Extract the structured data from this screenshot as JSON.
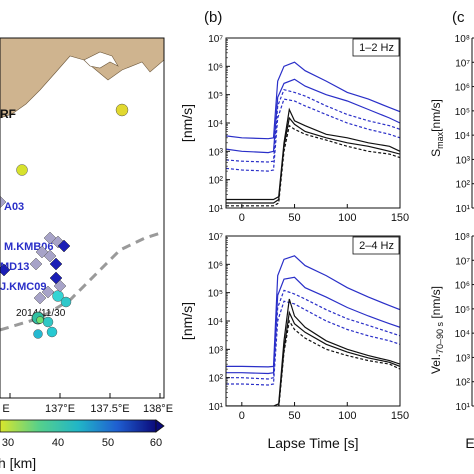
{
  "panel_labels": {
    "b": "(b)",
    "c": "(c"
  },
  "map": {
    "xticks": [
      "E",
      "137°E",
      "137.5°E",
      "138°E"
    ],
    "station_labels": [
      "RF",
      "A03",
      "M.KMB06",
      "MD13",
      "J.KMC09"
    ],
    "event_label": "2014/11/30",
    "colorbar": {
      "ticks": [
        "30",
        "40",
        "50",
        "60"
      ],
      "label": "h [km]"
    }
  },
  "colors": {
    "land": "#cfb48f",
    "sea": "#ffffff",
    "blue": "#2a2fc8",
    "black": "#111111",
    "trench": "#9a9a9a",
    "station": "#a7a3c8",
    "station_blue": "#1b1fb5"
  },
  "panel_c": {
    "ylabel_top": "S_max [nm/s]",
    "ylabel_bottom": "Vel._{70–90 s} [nm/s]",
    "xlabel_fragment": "E"
  },
  "chart_data": [
    {
      "type": "line",
      "inset_label": "1–2 Hz",
      "xlabel": "",
      "ylabel": "[nm/s]",
      "xlim": [
        -15,
        150
      ],
      "ylog": true,
      "ylim_exp": [
        1,
        7
      ],
      "xticks": [
        0,
        50,
        100,
        150
      ],
      "yticks": [
        "10¹",
        "10²",
        "10³",
        "10⁴",
        "10⁵",
        "10⁶",
        "10⁷"
      ],
      "series": [
        {
          "color": "blue",
          "dash": false,
          "x": [
            -15,
            0,
            25,
            30,
            34,
            40,
            50,
            60,
            80,
            100,
            120,
            140,
            150
          ],
          "y": [
            3500,
            3000,
            2800,
            3000,
            300000,
            1000000,
            1400000,
            700000,
            300000,
            120000,
            70000,
            35000,
            25000
          ]
        },
        {
          "color": "blue",
          "dash": false,
          "x": [
            -15,
            0,
            25,
            30,
            34,
            40,
            50,
            60,
            80,
            100,
            120,
            140,
            150
          ],
          "y": [
            1200,
            1000,
            900,
            1000,
            80000,
            250000,
            350000,
            200000,
            100000,
            60000,
            30000,
            15000,
            10000
          ]
        },
        {
          "color": "blue",
          "dash": true,
          "x": [
            -15,
            0,
            25,
            30,
            34,
            40,
            50,
            60,
            80,
            100,
            120,
            140,
            150
          ],
          "y": [
            500,
            450,
            420,
            450,
            40000,
            150000,
            120000,
            90000,
            40000,
            20000,
            12000,
            8000,
            6000
          ]
        },
        {
          "color": "blue",
          "dash": true,
          "x": [
            -15,
            0,
            25,
            30,
            34,
            40,
            50,
            60,
            80,
            100,
            120,
            140,
            150
          ],
          "y": [
            250,
            220,
            200,
            220,
            15000,
            70000,
            60000,
            40000,
            20000,
            10000,
            6000,
            4000,
            3000
          ]
        },
        {
          "color": "black",
          "dash": false,
          "x": [
            -15,
            0,
            25,
            30,
            35,
            40,
            45,
            50,
            60,
            80,
            100,
            120,
            140,
            150
          ],
          "y": [
            20,
            20,
            20,
            20,
            25,
            2000,
            30000,
            12000,
            8000,
            4000,
            3000,
            2000,
            1500,
            1000
          ]
        },
        {
          "color": "black",
          "dash": false,
          "x": [
            -15,
            0,
            25,
            30,
            35,
            40,
            45,
            50,
            60,
            80,
            100,
            120,
            140,
            150
          ],
          "y": [
            15,
            15,
            15,
            15,
            20,
            1500,
            15000,
            9000,
            5000,
            3000,
            2000,
            1500,
            1000,
            800
          ]
        },
        {
          "color": "black",
          "dash": true,
          "x": [
            -15,
            0,
            25,
            30,
            35,
            40,
            45,
            50,
            60,
            80,
            100,
            120,
            140,
            150
          ],
          "y": [
            12,
            12,
            12,
            12,
            15,
            1000,
            8000,
            6000,
            4000,
            2500,
            1500,
            1000,
            800,
            600
          ]
        }
      ]
    },
    {
      "type": "line",
      "inset_label": "2–4 Hz",
      "xlabel": "Lapse Time [s]",
      "ylabel": "[nm/s]",
      "xlim": [
        -15,
        150
      ],
      "ylog": true,
      "ylim_exp": [
        1,
        7
      ],
      "xticks": [
        0,
        50,
        100,
        150
      ],
      "yticks": [
        "10¹",
        "10²",
        "10³",
        "10⁴",
        "10⁵",
        "10⁶",
        "10⁷"
      ],
      "series": [
        {
          "color": "blue",
          "dash": false,
          "x": [
            -15,
            0,
            25,
            30,
            34,
            40,
            50,
            60,
            80,
            100,
            120,
            140,
            150
          ],
          "y": [
            250,
            250,
            240,
            250,
            400000,
            1500000,
            2000000,
            900000,
            400000,
            150000,
            70000,
            35000,
            25000
          ]
        },
        {
          "color": "blue",
          "dash": false,
          "x": [
            -15,
            0,
            25,
            30,
            34,
            40,
            50,
            60,
            80,
            100,
            120,
            140,
            150
          ],
          "y": [
            150,
            150,
            140,
            150,
            80000,
            300000,
            350000,
            150000,
            70000,
            30000,
            15000,
            8000,
            6000
          ]
        },
        {
          "color": "blue",
          "dash": true,
          "x": [
            -15,
            0,
            25,
            30,
            34,
            40,
            50,
            60,
            80,
            100,
            120,
            140,
            150
          ],
          "y": [
            100,
            100,
            90,
            100,
            30000,
            120000,
            90000,
            60000,
            25000,
            12000,
            7000,
            4000,
            3000
          ]
        },
        {
          "color": "blue",
          "dash": true,
          "x": [
            -15,
            0,
            25,
            30,
            34,
            40,
            50,
            60,
            80,
            100,
            120,
            140,
            150
          ],
          "y": [
            60,
            60,
            55,
            60,
            10000,
            50000,
            40000,
            25000,
            10000,
            5000,
            3000,
            2000,
            1500
          ]
        },
        {
          "color": "black",
          "dash": false,
          "x": [
            -15,
            0,
            25,
            30,
            35,
            40,
            45,
            50,
            60,
            80,
            100,
            120,
            140,
            150
          ],
          "y": [
            10,
            10,
            10,
            10,
            12,
            2000,
            60000,
            15000,
            6000,
            2000,
            1000,
            600,
            400,
            300
          ]
        },
        {
          "color": "black",
          "dash": false,
          "x": [
            -15,
            0,
            25,
            30,
            35,
            40,
            45,
            50,
            60,
            80,
            100,
            120,
            140,
            150
          ],
          "y": [
            8,
            8,
            8,
            8,
            10,
            1000,
            20000,
            8000,
            4000,
            1500,
            800,
            500,
            350,
            250
          ]
        },
        {
          "color": "black",
          "dash": true,
          "x": [
            -15,
            0,
            25,
            30,
            35,
            40,
            45,
            50,
            60,
            80,
            100,
            120,
            140,
            150
          ],
          "y": [
            6,
            6,
            6,
            6,
            8,
            800,
            10000,
            5000,
            2500,
            1000,
            600,
            400,
            300,
            200
          ]
        }
      ]
    },
    {
      "type": "scatter",
      "ylabel": "S_max [nm/s]",
      "ylog": true,
      "ylim_exp": [
        1,
        8
      ],
      "yticks": [
        "10¹",
        "10²",
        "10³",
        "10⁴",
        "10⁵",
        "10⁶",
        "10⁷",
        "10⁸"
      ]
    },
    {
      "type": "scatter",
      "ylabel": "Vel._{70–90 s} [nm/s]",
      "ylog": true,
      "ylim_exp": [
        1,
        8
      ],
      "yticks": [
        "10¹",
        "10²",
        "10³",
        "10⁴",
        "10⁵",
        "10⁶",
        "10⁷",
        "10⁸"
      ]
    }
  ]
}
